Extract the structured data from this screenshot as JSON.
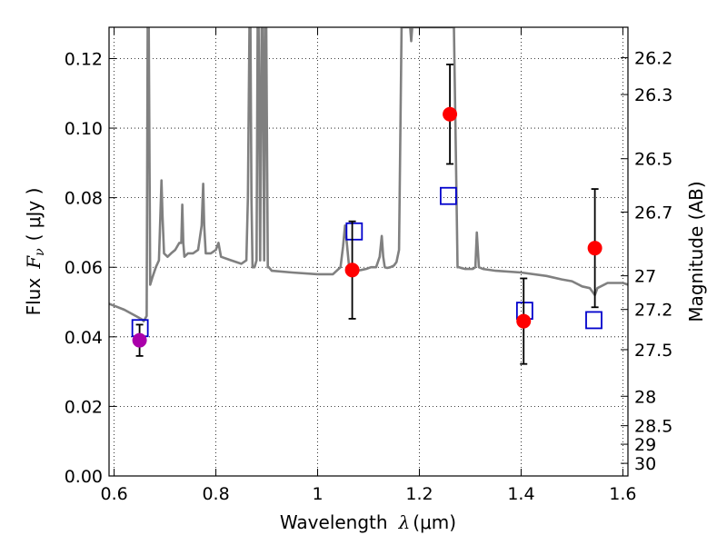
{
  "chart_data": {
    "type": "scatter",
    "xlabel": {
      "prefix": "Wavelength",
      "symbol": "λ",
      "units": "(μm)"
    },
    "ylabel": {
      "prefix": "Flux",
      "symbol": "F",
      "subscript": "ν",
      "units": "( μJy )"
    },
    "y2label": "Magnitude (AB)",
    "xlim": [
      0.59,
      1.61
    ],
    "ylim": [
      0.0,
      0.129
    ],
    "grid": true,
    "x_ticks": [
      0.6,
      0.8,
      1.0,
      1.2,
      1.4,
      1.6
    ],
    "x_tick_labels": [
      "0.6",
      "0.8",
      "1",
      "1.2",
      "1.4",
      "1.6"
    ],
    "y_ticks": [
      0.0,
      0.02,
      0.04,
      0.06,
      0.08,
      0.1,
      0.12
    ],
    "y_tick_labels": [
      "0.00",
      "0.02",
      "0.04",
      "0.06",
      "0.08",
      "0.10",
      "0.12"
    ],
    "y2_tick_labels": [
      "26.2",
      "26.3",
      "26.5",
      "26.7",
      "27",
      "27.2",
      "27.5",
      "28",
      "28.5",
      "29",
      "30"
    ],
    "y2_tick_values": [
      26.2,
      26.3,
      26.5,
      26.7,
      27.0,
      27.2,
      27.5,
      28.0,
      28.5,
      29.0,
      30.0
    ],
    "colors": {
      "model": "#808080",
      "detection": "#ff0000",
      "optical": "#aa00aa",
      "model_band": "#0000cc",
      "errorbar": "#000000"
    },
    "model_spectrum": {
      "x": [
        0.59,
        0.62,
        0.645,
        0.655,
        0.658,
        0.664,
        0.666,
        0.668,
        0.671,
        0.675,
        0.682,
        0.688,
        0.691,
        0.693,
        0.695,
        0.698,
        0.705,
        0.712,
        0.72,
        0.728,
        0.732,
        0.734,
        0.736,
        0.738,
        0.745,
        0.755,
        0.765,
        0.772,
        0.775,
        0.777,
        0.78,
        0.79,
        0.8,
        0.805,
        0.81,
        0.83,
        0.85,
        0.86,
        0.863,
        0.866,
        0.868,
        0.87,
        0.872,
        0.876,
        0.88,
        0.882,
        0.884,
        0.887,
        0.89,
        0.892,
        0.895,
        0.897,
        0.899,
        0.902,
        0.904,
        0.91,
        0.95,
        1.0,
        1.03,
        1.045,
        1.05,
        1.054,
        1.058,
        1.062,
        1.068,
        1.075,
        1.085,
        1.095,
        1.105,
        1.115,
        1.122,
        1.126,
        1.129,
        1.132,
        1.137,
        1.143,
        1.15,
        1.155,
        1.16,
        1.165,
        1.175,
        1.182,
        1.184,
        1.186,
        1.188,
        1.19,
        1.2,
        1.23,
        1.255,
        1.268,
        1.272,
        1.275,
        1.278,
        1.282,
        1.29,
        1.305,
        1.31,
        1.313,
        1.317,
        1.325,
        1.35,
        1.4,
        1.45,
        1.48,
        1.5,
        1.52,
        1.535,
        1.54,
        1.545,
        1.55,
        1.57,
        1.6,
        1.61
      ],
      "y": [
        0.0495,
        0.0478,
        0.0458,
        0.045,
        0.0445,
        0.046,
        0.129,
        0.129,
        0.055,
        0.057,
        0.06,
        0.062,
        0.075,
        0.085,
        0.075,
        0.064,
        0.063,
        0.064,
        0.065,
        0.067,
        0.067,
        0.078,
        0.067,
        0.063,
        0.064,
        0.064,
        0.065,
        0.072,
        0.084,
        0.072,
        0.064,
        0.064,
        0.065,
        0.067,
        0.063,
        0.062,
        0.061,
        0.062,
        0.08,
        0.129,
        0.129,
        0.08,
        0.06,
        0.06,
        0.062,
        0.129,
        0.129,
        0.062,
        0.129,
        0.129,
        0.062,
        0.129,
        0.129,
        0.06,
        0.06,
        0.059,
        0.0585,
        0.058,
        0.058,
        0.06,
        0.066,
        0.072,
        0.066,
        0.06,
        0.059,
        0.059,
        0.0592,
        0.0595,
        0.06,
        0.06,
        0.063,
        0.069,
        0.063,
        0.06,
        0.0598,
        0.06,
        0.0605,
        0.0615,
        0.065,
        0.129,
        0.129,
        0.129,
        0.125,
        0.129,
        0.129,
        0.129,
        0.129,
        0.129,
        0.129,
        0.129,
        0.09,
        0.06,
        0.06,
        0.0598,
        0.0595,
        0.0595,
        0.06,
        0.07,
        0.06,
        0.0595,
        0.059,
        0.0585,
        0.0575,
        0.0565,
        0.056,
        0.0545,
        0.054,
        0.053,
        0.052,
        0.054,
        0.0555,
        0.0555,
        0.055
      ]
    },
    "detections": [
      {
        "x": 1.068,
        "y": 0.0592,
        "yerr": [
          0.014,
          0.014
        ]
      },
      {
        "x": 1.26,
        "y": 0.104,
        "yerr": [
          0.0143,
          0.0143
        ]
      },
      {
        "x": 1.405,
        "y": 0.0445,
        "yerr": [
          0.0123,
          0.0123
        ]
      },
      {
        "x": 1.545,
        "y": 0.0655,
        "yerr": [
          0.017,
          0.017
        ]
      }
    ],
    "optical_point": {
      "x": 0.65,
      "y": 0.039,
      "yerr": [
        0.0045,
        0.0045
      ]
    },
    "model_bands": [
      {
        "x": 0.651,
        "y": 0.0425
      },
      {
        "x": 1.072,
        "y": 0.0703
      },
      {
        "x": 1.257,
        "y": 0.0805
      },
      {
        "x": 1.407,
        "y": 0.0475
      },
      {
        "x": 1.543,
        "y": 0.0448
      }
    ]
  }
}
